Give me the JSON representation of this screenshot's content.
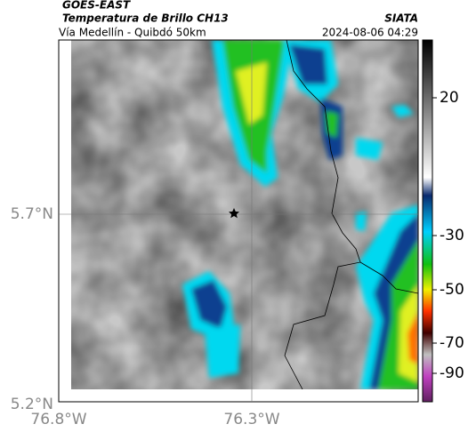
{
  "header": {
    "title": "GOES-EAST",
    "subtitle": "Temperatura de Brillo CH13",
    "source": "SIATA",
    "location": "Vía Medellín - Quibdó 50km",
    "datetime": "2024-08-06 04:29"
  },
  "axes": {
    "lat_labels": [
      "5.7°N",
      "5.2°N"
    ],
    "lon_labels": [
      "76.8°W",
      "76.3°W"
    ]
  },
  "colorbar": {
    "ticks": [
      20,
      -30,
      -50,
      -70,
      -90
    ]
  }
}
